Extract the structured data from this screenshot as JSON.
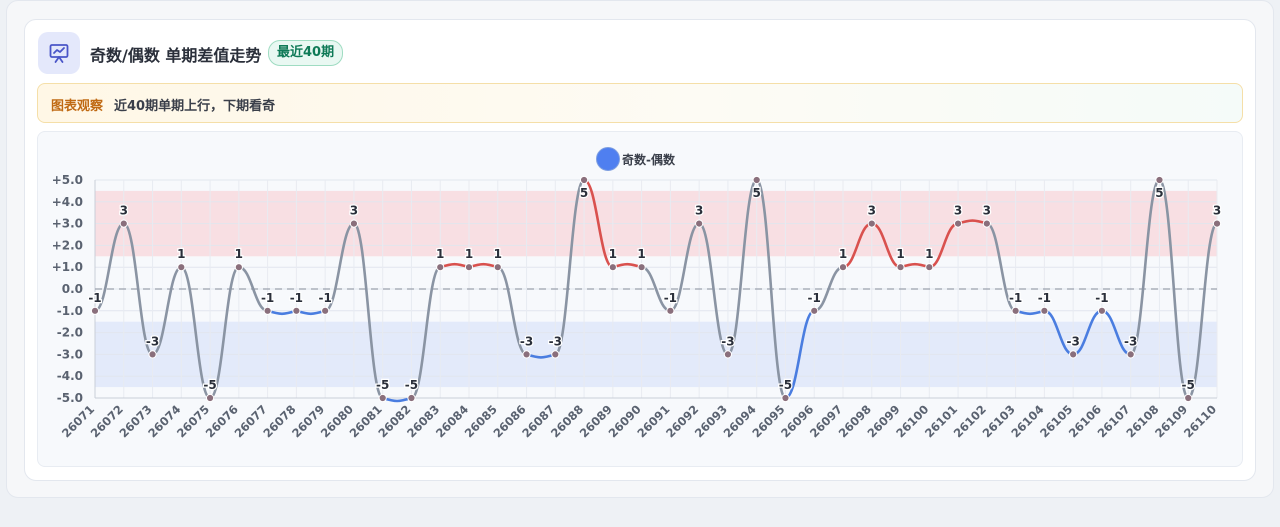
{
  "header": {
    "icon": "presentation-chart-icon",
    "title": "奇数/偶数 单期差值走势",
    "badge": "最近40期"
  },
  "notice": {
    "label": "图表观察",
    "text": "近40期单期上行，下期看奇"
  },
  "chart_data": {
    "type": "line",
    "categories": [
      "26071",
      "26072",
      "26073",
      "26074",
      "26075",
      "26076",
      "26077",
      "26078",
      "26079",
      "26080",
      "26081",
      "26082",
      "26083",
      "26084",
      "26085",
      "26086",
      "26087",
      "26088",
      "26089",
      "26090",
      "26091",
      "26092",
      "26093",
      "26094",
      "26095",
      "26096",
      "26097",
      "26098",
      "26099",
      "26100",
      "26101",
      "26102",
      "26103",
      "26104",
      "26105",
      "26106",
      "26107",
      "26108",
      "26109",
      "26110"
    ],
    "series": [
      {
        "name": "奇数-偶数",
        "values": [
          -1,
          3,
          -3,
          1,
          -5,
          1,
          -1,
          -1,
          -1,
          3,
          -5,
          -5,
          1,
          1,
          1,
          -3,
          -3,
          5,
          1,
          1,
          -1,
          3,
          -3,
          5,
          -5,
          -1,
          1,
          3,
          1,
          1,
          3,
          3,
          -1,
          -1,
          -3,
          -1,
          -3,
          5,
          -5,
          3
        ],
        "data_labels": [
          "-1",
          "3",
          "-3",
          "1",
          "-5",
          "1",
          "-1",
          "-1",
          "-1",
          "3",
          "-5",
          "-5",
          "1",
          "1",
          "1",
          "-3",
          "-3",
          "5",
          "1",
          "1",
          "-1",
          "3",
          "-3",
          "5",
          "-5",
          "-1",
          "1",
          "3",
          "1",
          "1",
          "3",
          "3",
          "-1",
          "-1",
          "-3",
          "-1",
          "-3",
          "5",
          "-5",
          "3"
        ]
      }
    ],
    "ylim": [
      -5,
      5
    ],
    "yticks": [
      5,
      4,
      3,
      2,
      1,
      0,
      -1,
      -2,
      -3,
      -4,
      -5
    ],
    "ytick_labels": [
      "+5.0",
      "+4.0",
      "+3.0",
      "+2.0",
      "+1.0",
      "0.0",
      "-1.0",
      "-2.0",
      "-3.0",
      "-4.0",
      "-5.0"
    ],
    "bands": [
      {
        "from": 1.5,
        "to": 4.5,
        "color": "#f8dfe3"
      },
      {
        "from": -4.5,
        "to": -1.5,
        "color": "#e3eafa"
      }
    ],
    "zero_line": "dashed",
    "grid": true,
    "legend": "top-center",
    "colors": {
      "neutral": "#8a94a3",
      "odd_streak": "#d9514e",
      "even_streak": "#4a7de0",
      "point": "#8a6f7c",
      "legend_dot": "#4f7ff0"
    }
  }
}
